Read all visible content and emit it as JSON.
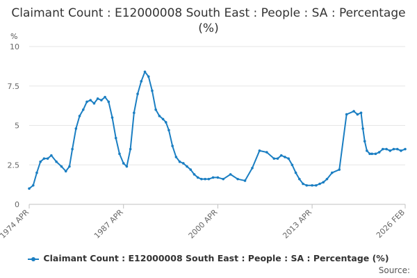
{
  "chart_data": {
    "type": "line",
    "title": "Claimant Count : E12000008 South East : People : SA : Percentage (%)",
    "ylabel": "%",
    "xlabel": "",
    "ylim": [
      0,
      10
    ],
    "yticks": [
      0,
      2.5,
      5,
      7.5,
      10
    ],
    "ytick_labels": [
      "0",
      "2.5",
      "5",
      "7.5",
      "10"
    ],
    "xlim": [
      1974.25,
      2026.08
    ],
    "xticks": [
      {
        "value": 1974.25,
        "label": "1974 APR"
      },
      {
        "value": 1987.25,
        "label": "1987 APR"
      },
      {
        "value": 2000.25,
        "label": "2000 APR"
      },
      {
        "value": 2013.25,
        "label": "2013 APR"
      },
      {
        "value": 2026.08,
        "label": "2026 FEB"
      }
    ],
    "grid": "horizontal",
    "legend_position": "bottom",
    "color": "#1a7ec2",
    "series": [
      {
        "name": "Claimant Count : E12000008 South East : People : SA : Percentage (%)",
        "x": [
          1974.25,
          1974.8,
          1975.3,
          1975.8,
          1976.3,
          1976.8,
          1977.3,
          1978.0,
          1978.7,
          1979.3,
          1979.8,
          1980.2,
          1980.7,
          1981.2,
          1981.7,
          1982.2,
          1982.7,
          1983.2,
          1983.7,
          1984.2,
          1984.7,
          1985.2,
          1985.7,
          1986.2,
          1986.7,
          1987.25,
          1987.7,
          1988.2,
          1988.7,
          1989.2,
          1989.7,
          1990.2,
          1990.7,
          1991.2,
          1991.7,
          1992.2,
          1992.7,
          1993.1,
          1993.5,
          1994.0,
          1994.5,
          1995.0,
          1995.5,
          1996.0,
          1996.5,
          1997.0,
          1997.5,
          1998.0,
          1998.5,
          1999.0,
          1999.6,
          2000.25,
          2001.0,
          2002.0,
          2003.0,
          2004.0,
          2005.0,
          2006.0,
          2007.0,
          2008.0,
          2008.5,
          2009.0,
          2009.5,
          2010.0,
          2010.5,
          2011.0,
          2011.5,
          2012.0,
          2012.5,
          2013.25,
          2013.8,
          2014.3,
          2014.8,
          2015.3,
          2016.0,
          2017.0,
          2018.0,
          2019.0,
          2019.5,
          2020.0,
          2020.25,
          2020.5,
          2020.8,
          2021.2,
          2021.5,
          2022.0,
          2022.5,
          2023.0,
          2023.5,
          2024.0,
          2024.5,
          2025.0,
          2025.5,
          2026.08
        ],
        "values": [
          1.0,
          1.2,
          2.0,
          2.7,
          2.9,
          2.9,
          3.1,
          2.7,
          2.4,
          2.1,
          2.4,
          3.5,
          4.8,
          5.6,
          6.0,
          6.5,
          6.6,
          6.4,
          6.7,
          6.6,
          6.8,
          6.5,
          5.5,
          4.2,
          3.2,
          2.6,
          2.4,
          3.5,
          5.8,
          7.0,
          7.8,
          8.4,
          8.1,
          7.2,
          6.0,
          5.6,
          5.4,
          5.2,
          4.7,
          3.7,
          3.0,
          2.7,
          2.6,
          2.4,
          2.2,
          1.9,
          1.7,
          1.6,
          1.6,
          1.6,
          1.7,
          1.7,
          1.6,
          1.9,
          1.6,
          1.5,
          2.3,
          3.4,
          3.3,
          2.9,
          2.9,
          3.1,
          3.0,
          2.9,
          2.5,
          2.0,
          1.6,
          1.3,
          1.2,
          1.2,
          1.2,
          1.3,
          1.4,
          1.6,
          2.0,
          2.2,
          5.7,
          5.9,
          5.7,
          5.8,
          4.8,
          4.0,
          3.4,
          3.2,
          3.2,
          3.2,
          3.3,
          3.5,
          3.5,
          3.4,
          3.5,
          3.5,
          3.4,
          3.5
        ]
      }
    ],
    "source_label": "Source:"
  }
}
